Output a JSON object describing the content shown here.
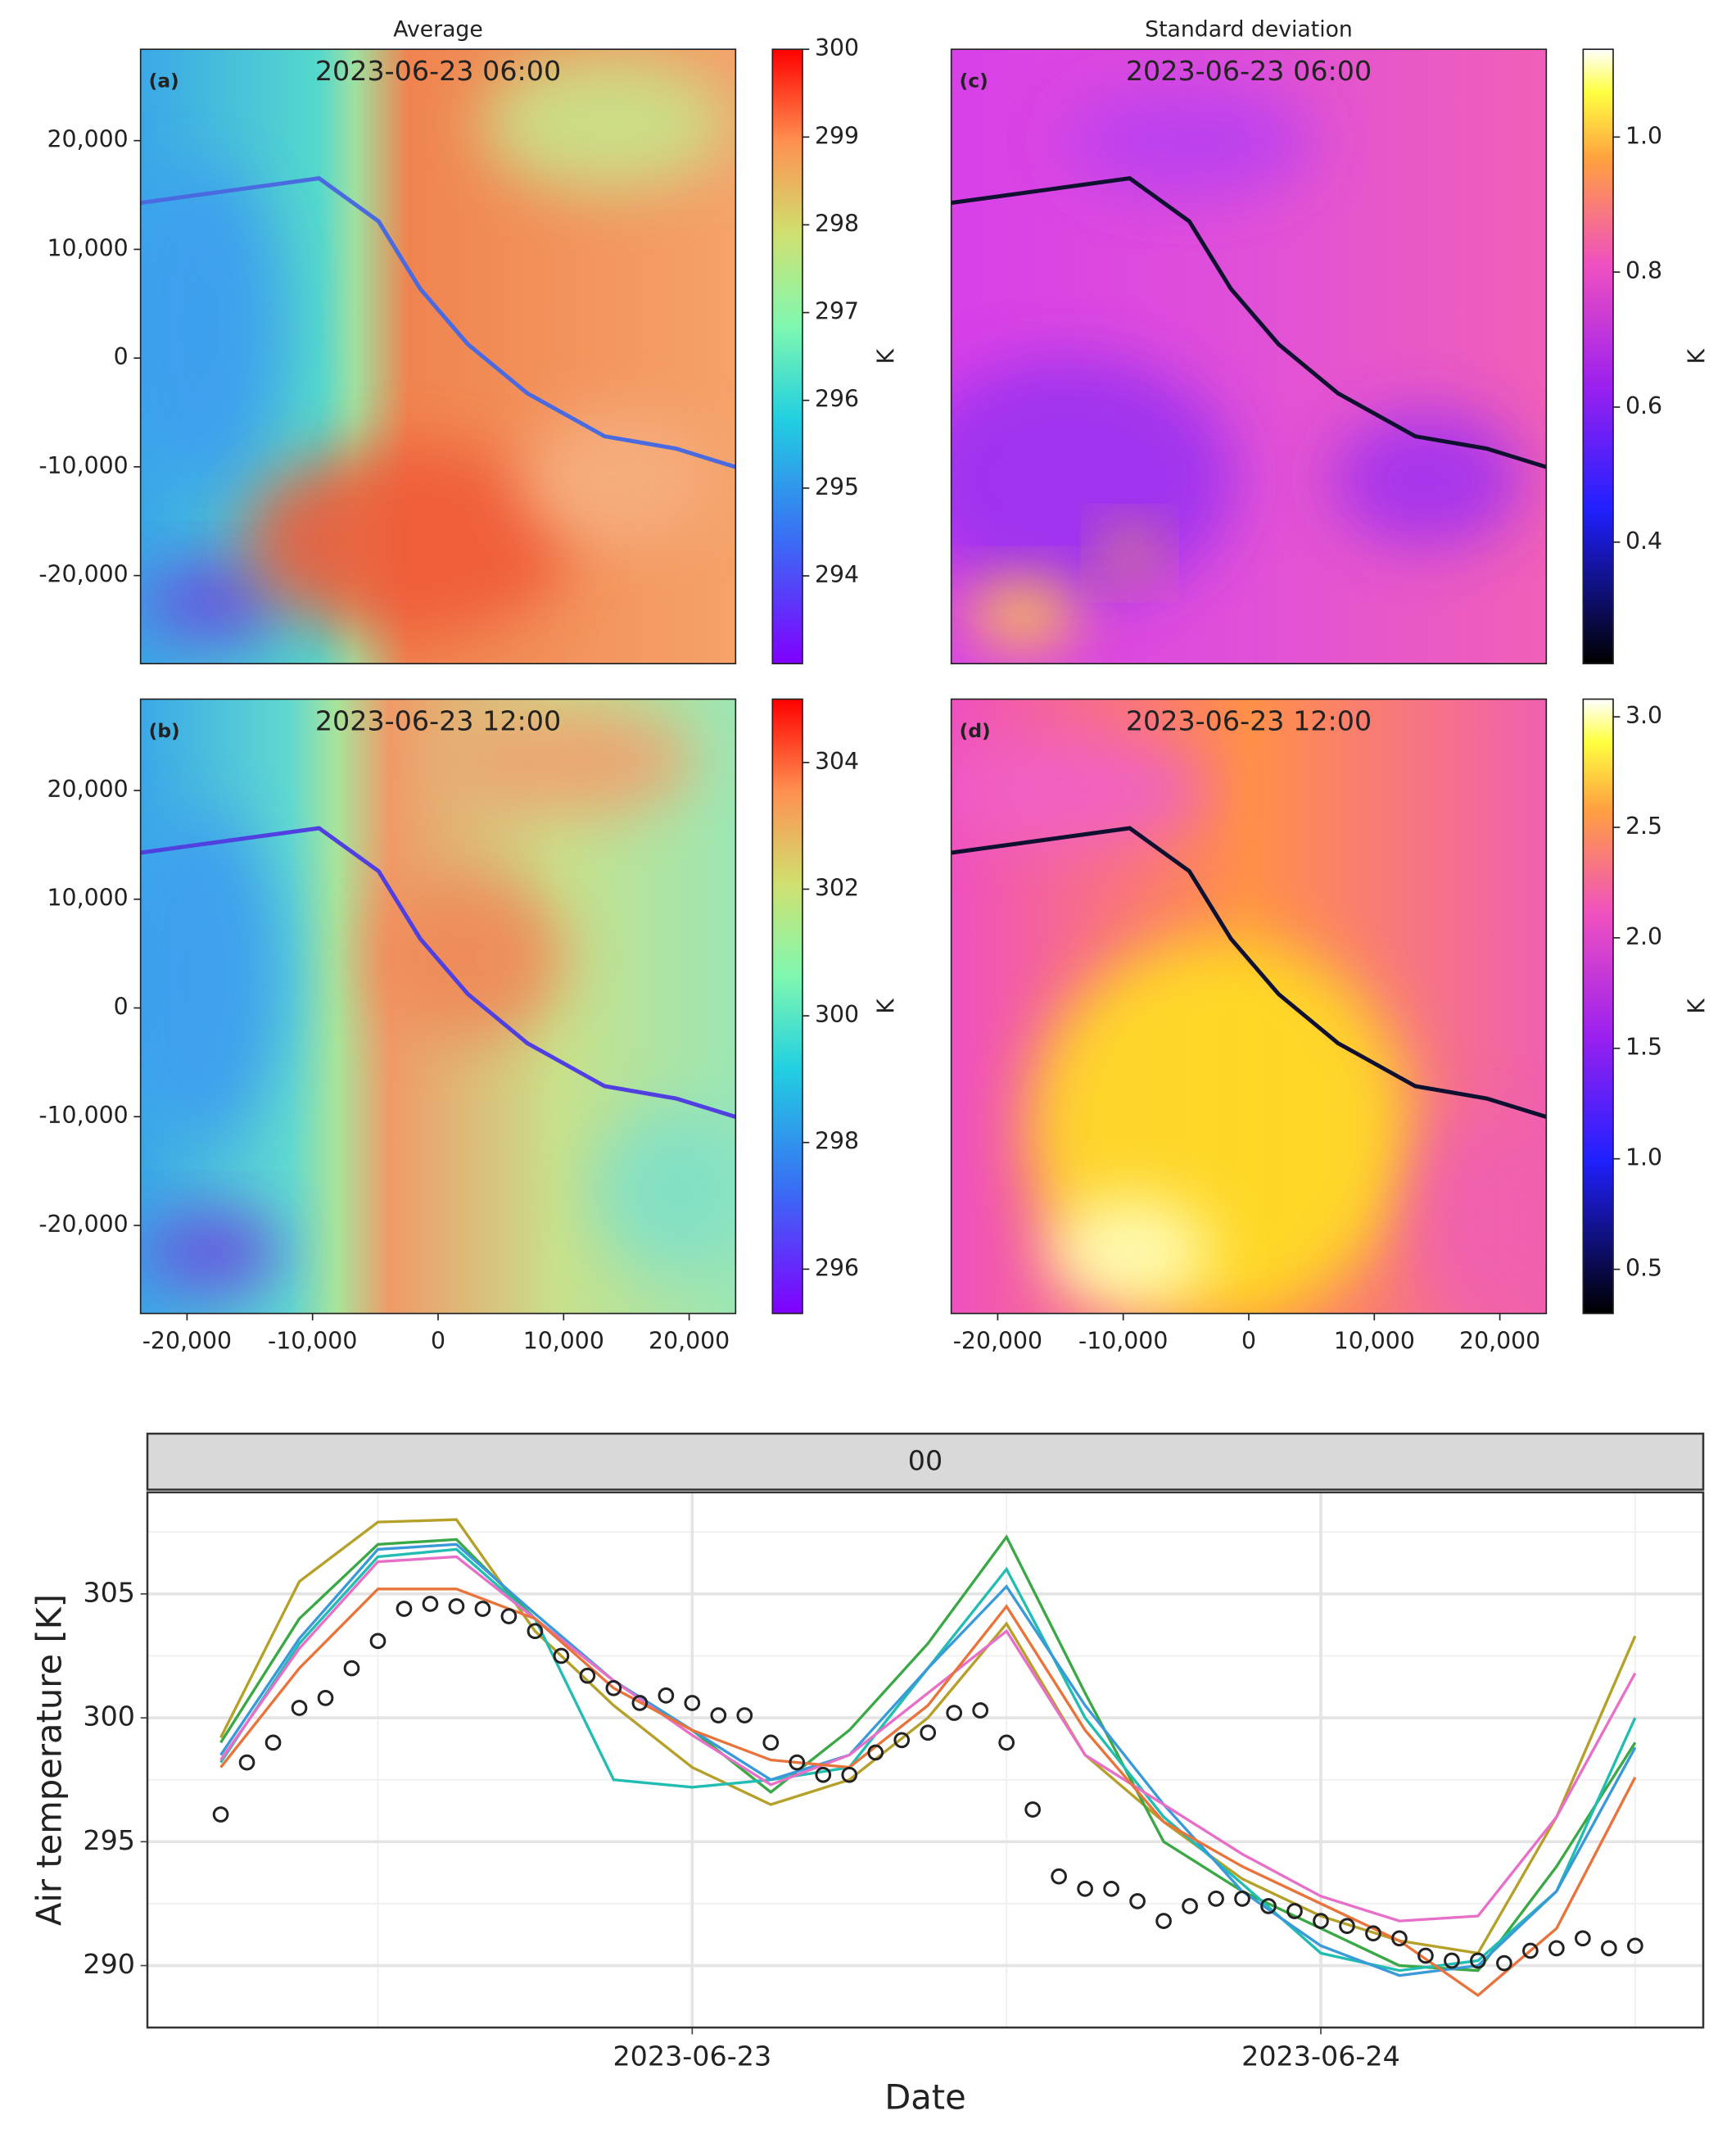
{
  "chart_data": [
    {
      "type": "heatmap",
      "title": "Average",
      "panel_label": "(a)",
      "annotation": "2023-06-23 06:00",
      "colormap": "rainbow",
      "colorbar_label": "K",
      "clim": [
        293.0,
        300.0
      ],
      "cticks": [
        294,
        295,
        296,
        297,
        298,
        299,
        300
      ],
      "xlim": [
        -23700,
        23700
      ],
      "ylim": [
        -28100,
        28400
      ],
      "yticks": [
        {
          "value": -20000,
          "label": "-20,000"
        },
        {
          "value": -10000,
          "label": "-10,000"
        },
        0,
        {
          "value": 10000,
          "label": "10,000"
        },
        {
          "value": 20000,
          "label": "20,000"
        }
      ]
    },
    {
      "type": "heatmap",
      "panel_label": "(b)",
      "annotation": "2023-06-23 12:00",
      "colormap": "rainbow",
      "colorbar_label": "K",
      "clim": [
        295.3,
        305.0
      ],
      "cticks": [
        296,
        298,
        300,
        302,
        304
      ],
      "xlim": [
        -23700,
        23700
      ],
      "ylim": [
        -28100,
        28400
      ],
      "xticks": [
        {
          "value": -20000,
          "label": "-20,000"
        },
        {
          "value": -10000,
          "label": "-10,000"
        },
        0,
        {
          "value": 10000,
          "label": "10,000"
        },
        {
          "value": 20000,
          "label": "20,000"
        }
      ],
      "yticks": [
        {
          "value": -20000,
          "label": "-20,000"
        },
        {
          "value": -10000,
          "label": "-10,000"
        },
        0,
        {
          "value": 10000,
          "label": "10,000"
        },
        {
          "value": 20000,
          "label": "20,000"
        }
      ]
    },
    {
      "type": "heatmap",
      "title": "Standard deviation",
      "panel_label": "(c)",
      "annotation": "2023-06-23 06:00",
      "colormap": "gnuplot2",
      "colorbar_label": "K",
      "clim": [
        0.22,
        1.13
      ],
      "cticks": [
        0.4,
        0.6,
        0.8,
        {
          "value": 1,
          "label": "1.0"
        }
      ],
      "xlim": [
        -23700,
        23700
      ],
      "ylim": [
        -28100,
        28400
      ]
    },
    {
      "type": "heatmap",
      "panel_label": "(d)",
      "annotation": "2023-06-23 12:00",
      "colormap": "gnuplot2",
      "colorbar_label": "K",
      "clim": [
        0.3,
        3.08
      ],
      "cticks": [
        0.5,
        {
          "value": 1,
          "label": "1.0"
        },
        1.5,
        {
          "value": 2,
          "label": "2.0"
        },
        2.5,
        {
          "value": 3,
          "label": "3.0"
        }
      ],
      "xlim": [
        -23700,
        23700
      ],
      "ylim": [
        -28100,
        28400
      ],
      "xticks": [
        {
          "value": -20000,
          "label": "-20,000"
        },
        {
          "value": -10000,
          "label": "-10,000"
        },
        0,
        {
          "value": 10000,
          "label": "10,000"
        },
        {
          "value": 20000,
          "label": "20,000"
        }
      ]
    },
    {
      "type": "line",
      "facet": "00",
      "x_label": "Date",
      "y_label": "Air temperature [K]",
      "grid": true,
      "xlim": [
        3.2,
        62.6
      ],
      "ylim": [
        287.5,
        309.1
      ],
      "xticks": [
        {
          "value": 24,
          "label": "2023-06-23"
        },
        {
          "value": 48,
          "label": "2023-06-24"
        }
      ],
      "xminor": [
        12,
        36,
        60
      ],
      "yticks": [
        290,
        295,
        300,
        305
      ],
      "yminor": [
        292.5,
        297.5,
        302.5,
        307.5
      ],
      "series": [
        {
          "color": "#222222",
          "style": "points",
          "x": [
            6,
            7,
            8,
            9,
            10,
            11,
            12,
            13,
            14,
            15,
            16,
            17,
            18,
            19,
            20,
            21,
            22,
            23,
            24,
            25,
            26,
            27,
            28,
            29,
            30,
            31,
            32,
            33,
            34,
            35,
            36,
            37,
            38,
            39,
            40,
            41,
            42,
            43,
            44,
            45,
            46,
            47,
            48,
            49,
            50,
            51,
            52,
            53,
            54,
            55,
            56,
            57,
            58,
            59,
            60
          ],
          "values": [
            296.1,
            298.2,
            299.0,
            300.4,
            300.8,
            302.0,
            303.1,
            304.4,
            304.6,
            304.5,
            304.4,
            304.1,
            303.5,
            302.5,
            301.7,
            301.2,
            300.6,
            300.9,
            300.6,
            300.1,
            300.1,
            299.0,
            298.2,
            297.7,
            297.7,
            298.6,
            299.1,
            299.4,
            300.2,
            300.3,
            299.0,
            296.3,
            293.6,
            293.1,
            293.1,
            292.6,
            291.8,
            292.4,
            292.7,
            292.7,
            292.4,
            292.2,
            291.8,
            291.6,
            291.3,
            291.1,
            290.4,
            290.2,
            290.2,
            290.1,
            290.6,
            290.7,
            291.1,
            290.7,
            290.8
          ]
        },
        {
          "color": "#b5a02a",
          "style": "line",
          "x": [
            6,
            9,
            12,
            15,
            18,
            21,
            24,
            27,
            30,
            33,
            36,
            39,
            42,
            45,
            48,
            51,
            54,
            57,
            60
          ],
          "values": [
            299.2,
            305.5,
            307.9,
            308.0,
            303.5,
            300.5,
            298.0,
            296.5,
            297.5,
            300.0,
            303.8,
            298.5,
            295.8,
            293.5,
            292.0,
            291.0,
            290.5,
            296.0,
            303.3
          ]
        },
        {
          "color": "#3aa845",
          "style": "line",
          "x": [
            6,
            9,
            12,
            15,
            18,
            21,
            24,
            27,
            30,
            33,
            36,
            39,
            42,
            45,
            48,
            51,
            54,
            57,
            60
          ],
          "values": [
            299.0,
            304.0,
            307.0,
            307.2,
            304.0,
            301.5,
            299.5,
            297.0,
            299.5,
            303.0,
            307.3,
            301.0,
            295.0,
            293.0,
            291.5,
            290.0,
            289.8,
            294.0,
            299.0
          ]
        },
        {
          "color": "#22bdb2",
          "style": "line",
          "x": [
            6,
            9,
            12,
            15,
            18,
            21,
            24,
            27,
            30,
            33,
            36,
            39,
            42,
            45,
            48,
            51,
            54,
            57,
            60
          ],
          "values": [
            298.2,
            303.0,
            306.5,
            306.8,
            304.0,
            297.5,
            297.2,
            297.5,
            298.0,
            302.0,
            306.0,
            300.0,
            296.0,
            293.3,
            290.5,
            289.8,
            290.2,
            293.0,
            300.0
          ]
        },
        {
          "color": "#3a9ad9",
          "style": "line",
          "x": [
            6,
            9,
            12,
            15,
            18,
            21,
            24,
            27,
            30,
            33,
            36,
            39,
            42,
            45,
            48,
            51,
            54,
            57,
            60
          ],
          "values": [
            298.5,
            303.2,
            306.8,
            307.0,
            304.2,
            301.5,
            299.5,
            297.5,
            298.5,
            302.0,
            305.3,
            300.5,
            296.5,
            293.0,
            290.8,
            289.6,
            290.0,
            293.0,
            298.8
          ]
        },
        {
          "color": "#e86fc8",
          "style": "line",
          "x": [
            6,
            9,
            12,
            15,
            18,
            21,
            24,
            27,
            30,
            33,
            36,
            39,
            42,
            45,
            48,
            51,
            54,
            57,
            60
          ],
          "values": [
            298.3,
            302.8,
            306.3,
            306.5,
            304.0,
            301.5,
            299.3,
            297.3,
            298.5,
            301.0,
            303.5,
            298.5,
            296.5,
            294.5,
            292.8,
            291.8,
            292.0,
            296.0,
            301.8
          ]
        },
        {
          "color": "#e8743b",
          "style": "line",
          "x": [
            6,
            9,
            12,
            15,
            18,
            21,
            24,
            27,
            30,
            33,
            36,
            39,
            42,
            45,
            48,
            51,
            54,
            57,
            60
          ],
          "values": [
            298.0,
            302.0,
            305.2,
            305.2,
            304.0,
            301.2,
            299.5,
            298.3,
            298.0,
            300.5,
            304.5,
            299.5,
            295.8,
            294.0,
            292.5,
            291.0,
            288.8,
            291.5,
            297.6
          ]
        }
      ]
    }
  ]
}
